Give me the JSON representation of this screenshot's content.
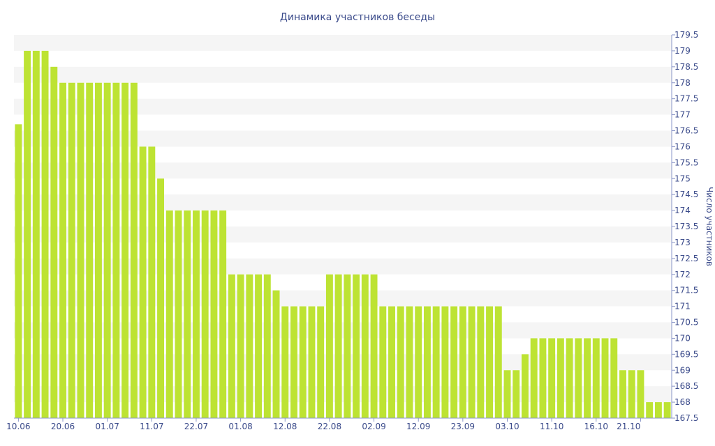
{
  "chart_data": {
    "type": "bar",
    "title": "Динамика участников беседы",
    "xlabel": "",
    "ylabel": "Число участников",
    "y_axis_side": "right",
    "ylim": [
      167.5,
      179.5
    ],
    "yticks": [
      167.5,
      168,
      168.5,
      169,
      169.5,
      170,
      170.5,
      171,
      171.5,
      172,
      172.5,
      173,
      173.5,
      174,
      174.5,
      175,
      175.5,
      176,
      176.5,
      177,
      177.5,
      178,
      178.5,
      179,
      179.5
    ],
    "xticks": [
      {
        "index": 0,
        "label": "10.06"
      },
      {
        "index": 5,
        "label": "20.06"
      },
      {
        "index": 10,
        "label": "01.07"
      },
      {
        "index": 15,
        "label": "11.07"
      },
      {
        "index": 20,
        "label": "22.07"
      },
      {
        "index": 25,
        "label": "01.08"
      },
      {
        "index": 30,
        "label": "12.08"
      },
      {
        "index": 35,
        "label": "22.08"
      },
      {
        "index": 40,
        "label": "02.09"
      },
      {
        "index": 45,
        "label": "12.09"
      },
      {
        "index": 50,
        "label": "23.09"
      },
      {
        "index": 55,
        "label": "03.10"
      },
      {
        "index": 60,
        "label": "11.10"
      },
      {
        "index": 65,
        "label": "16.10"
      },
      {
        "index": 70,
        "label": "21.10"
      }
    ],
    "values": [
      176.7,
      179,
      179,
      179,
      178.5,
      178,
      178,
      178,
      178,
      178,
      178,
      178,
      178,
      178,
      176,
      176,
      175,
      174,
      174,
      174,
      174,
      174,
      174,
      174,
      172,
      172,
      172,
      172,
      172,
      171.5,
      171,
      171,
      171,
      171,
      171,
      172,
      172,
      172,
      172,
      172,
      172,
      171,
      171,
      171,
      171,
      171,
      171,
      171,
      171,
      171,
      171,
      171,
      171,
      171,
      171,
      169,
      169,
      169.5,
      170,
      170,
      170,
      170,
      170,
      170,
      170,
      170,
      170,
      170,
      169,
      169,
      169,
      168,
      168,
      168
    ],
    "bar_color": "#bde333",
    "grid": "horizontal bands"
  }
}
